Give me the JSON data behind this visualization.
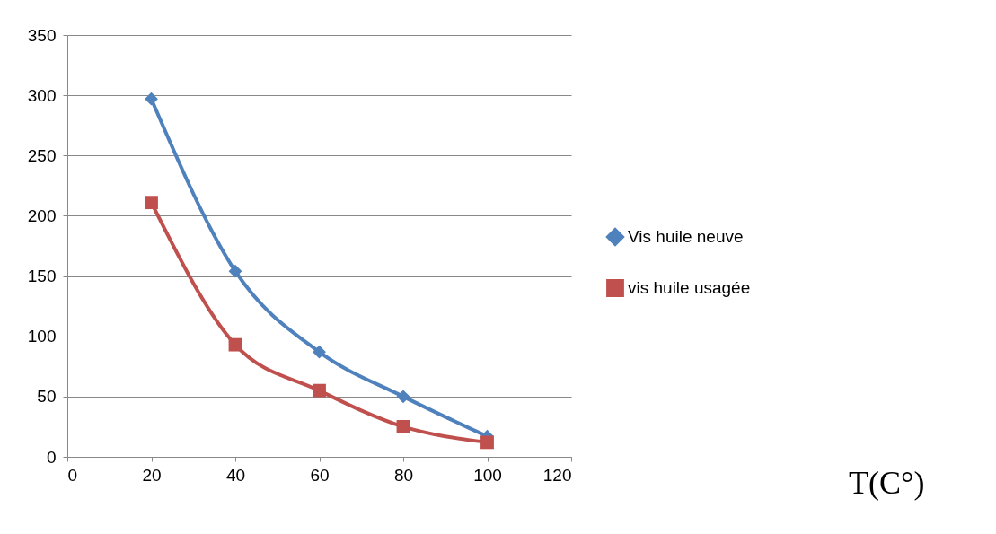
{
  "chart_data": {
    "type": "line",
    "annotations": [
      "T(C°)"
    ],
    "x": [
      20,
      40,
      60,
      80,
      100
    ],
    "series": [
      {
        "name": "Vis huile neuve",
        "color": "#4f81bd",
        "marker": "diamond",
        "values": [
          297,
          154,
          87,
          50,
          17
        ]
      },
      {
        "name": "vis huile usagée",
        "color": "#c0504d",
        "marker": "square",
        "values": [
          211,
          93,
          55,
          25,
          12
        ]
      }
    ],
    "xlim": [
      0,
      120
    ],
    "xticks": [
      0,
      20,
      40,
      60,
      80,
      100,
      120
    ],
    "ylim": [
      0,
      350
    ],
    "yticks": [
      0,
      50,
      100,
      150,
      200,
      250,
      300,
      350
    ],
    "grid": "y",
    "legend": "right",
    "line_style": "solid"
  }
}
